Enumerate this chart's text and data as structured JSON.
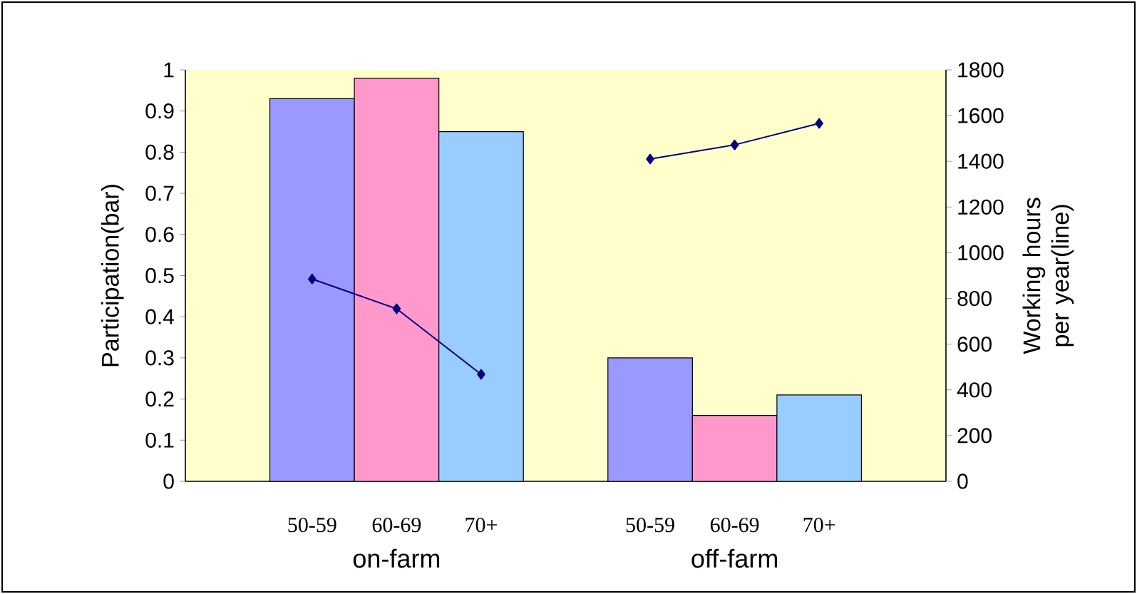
{
  "chart_data": {
    "type": "bar",
    "categories": [
      null,
      "50-59",
      "60-69",
      "70+",
      null,
      "50-59",
      "60-69",
      "70+",
      null
    ],
    "series": [
      {
        "values": [
          null,
          0.93,
          0.98,
          0.85,
          null,
          0.3,
          0.16,
          0.21,
          null
        ],
        "colors": [
          null,
          "#9999ff",
          "#ff99cc",
          "#99ccff",
          null,
          "#9999ff",
          "#ff99cc",
          "#99ccff",
          null
        ]
      },
      {
        "type": "line",
        "axis": "y2",
        "color": "#000080",
        "values": [
          null,
          885,
          755,
          468,
          null,
          1410,
          1472,
          1566,
          null
        ]
      }
    ],
    "ylabel": "Participation(bar)",
    "y2label": "Working hours per year(line)",
    "ylim": [
      0,
      1
    ],
    "yticks": [
      0,
      0.1,
      0.2,
      0.3,
      0.4,
      0.5,
      0.6,
      0.7,
      0.8,
      0.9,
      1
    ],
    "y2lim": [
      0,
      1800
    ],
    "y2ticks": [
      0,
      200,
      400,
      600,
      800,
      1000,
      1200,
      1400,
      1600,
      1800
    ],
    "marker": "diamond",
    "line_style": "solid",
    "annotations": [
      "on-farm",
      "off-farm"
    ]
  }
}
